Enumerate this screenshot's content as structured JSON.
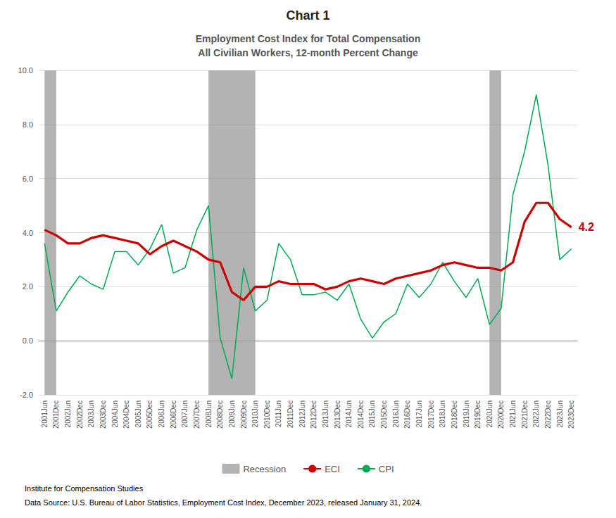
{
  "chart_data": {
    "type": "line",
    "title": "Chart 1",
    "subtitle": "Employment Cost Index for Total Compensation\nAll Civilian Workers, 12-month Percent Change",
    "categories": [
      "2001Jun",
      "2001Dec",
      "2002Jun",
      "2002Dec",
      "2003Jun",
      "2003Dec",
      "2004Jun",
      "2004Dec",
      "2005Jun",
      "2005Dec",
      "2006Jun",
      "2006Dec",
      "2007Jun",
      "2007Dec",
      "2008Jun",
      "2008Dec",
      "2009Jun",
      "2009Dec",
      "2010Jun",
      "2010Dec",
      "2011Jun",
      "2011Dec",
      "2012Jun",
      "2012Dec",
      "2013Jun",
      "2013Dec",
      "2014Jun",
      "2014Dec",
      "2015Jun",
      "2015Dec",
      "2016Jun",
      "2016Dec",
      "2017Jun",
      "2017Dec",
      "2018Jun",
      "2018Dec",
      "2019Jun",
      "2019Dec",
      "2020Jun",
      "2020Dec",
      "2021Jun",
      "2021Dec",
      "2022Jun",
      "2022Dec",
      "2023Jun",
      "2023Dec"
    ],
    "bands": [
      {
        "name": "Recession",
        "color": "#999999",
        "ranges": [
          [
            "2001Jun",
            "2001Dec"
          ],
          [
            "2008Jun",
            "2010Jun"
          ],
          [
            "2020Jun",
            "2020Dec"
          ]
        ]
      }
    ],
    "series": [
      {
        "name": "ECI",
        "color": "#cc0000",
        "values": [
          4.1,
          3.9,
          3.6,
          3.6,
          3.8,
          3.9,
          3.8,
          3.7,
          3.6,
          3.2,
          3.5,
          3.7,
          3.5,
          3.3,
          3.0,
          2.9,
          1.8,
          1.5,
          2.0,
          2.0,
          2.2,
          2.1,
          2.1,
          2.1,
          1.9,
          2.0,
          2.2,
          2.3,
          2.2,
          2.1,
          2.3,
          2.4,
          2.5,
          2.6,
          2.8,
          2.9,
          2.8,
          2.7,
          2.7,
          2.6,
          2.9,
          4.4,
          5.1,
          5.1,
          4.5,
          4.2
        ]
      },
      {
        "name": "CPI",
        "color": "#00aa55",
        "values": [
          3.6,
          1.1,
          1.8,
          2.4,
          2.1,
          1.9,
          3.3,
          3.3,
          2.8,
          3.4,
          4.3,
          2.5,
          2.7,
          4.1,
          5.0,
          0.1,
          -1.4,
          2.7,
          1.1,
          1.5,
          3.6,
          3.0,
          1.7,
          1.7,
          1.8,
          1.5,
          2.1,
          0.8,
          0.1,
          0.7,
          1.0,
          2.1,
          1.6,
          2.1,
          2.9,
          2.2,
          1.6,
          2.3,
          0.6,
          1.2,
          5.4,
          7.0,
          9.1,
          6.5,
          3.0,
          3.4
        ]
      }
    ],
    "annotations": [
      {
        "text": "4.2",
        "series": "ECI",
        "x": "2023Dec",
        "y": 4.2
      }
    ],
    "footnotes": [
      "Institute for Compensation Studies",
      "Data Source: U.S. Bureau of Labor Statistics, Employment Cost Index, December 2023, released January 31, 2024."
    ],
    "ylim": [
      -2.0,
      10.0
    ],
    "yticks": [
      {
        "value": -2.0,
        "label": "-2.0"
      },
      {
        "value": 0.0,
        "label": "0.0"
      },
      {
        "value": 2.0,
        "label": "2.0"
      },
      {
        "value": 4.0,
        "label": "4.0"
      },
      {
        "value": 6.0,
        "label": "6.0"
      },
      {
        "value": 8.0,
        "label": "8.0"
      },
      {
        "value": 10.0,
        "label": "10.0"
      }
    ],
    "grid": true,
    "legend": "bottom"
  }
}
